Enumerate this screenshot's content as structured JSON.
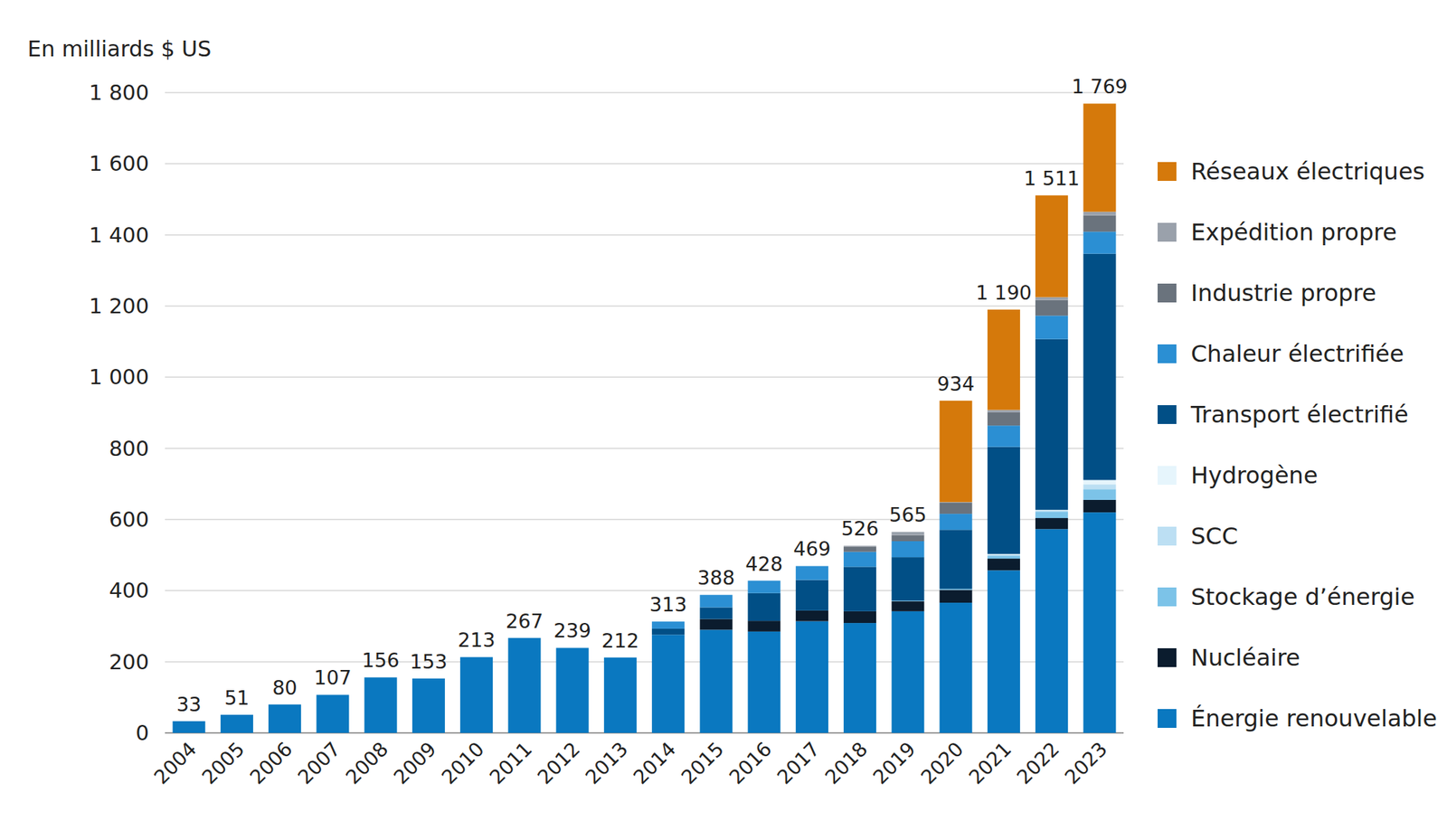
{
  "chart_data": {
    "type": "bar",
    "stacked": true,
    "y_label": "En milliards $ US",
    "categories": [
      "2004",
      "2005",
      "2006",
      "2007",
      "2008",
      "2009",
      "2010",
      "2011",
      "2012",
      "2013",
      "2014",
      "2015",
      "2016",
      "2017",
      "2018",
      "2019",
      "2020",
      "2021",
      "2022",
      "2023"
    ],
    "ylim": [
      0,
      1800
    ],
    "yticks": [
      0,
      200,
      400,
      600,
      800,
      {
        "value": 1000,
        "label": "1 000"
      },
      {
        "value": 1200,
        "label": "1 200"
      },
      {
        "value": 1400,
        "label": "1 400"
      },
      {
        "value": 1600,
        "label": "1 600"
      },
      {
        "value": 1800,
        "label": "1 800"
      }
    ],
    "grid": true,
    "legend": "right",
    "series": [
      {
        "name": "Énergie renouvelable",
        "color": "#0a78c0",
        "values": [
          33,
          51,
          80,
          107,
          156,
          153,
          213,
          267,
          239,
          212,
          276,
          290,
          285,
          314,
          309,
          342,
          366,
          457,
          573,
          620
        ]
      },
      {
        "name": "Nucléaire",
        "color": "#0b1c2e",
        "values": [
          0,
          0,
          0,
          0,
          0,
          0,
          0,
          0,
          0,
          0,
          0,
          30,
          30,
          30,
          33,
          28,
          36,
          33,
          31,
          35
        ]
      },
      {
        "name": "Stockage d’énergie",
        "color": "#7cc3e8",
        "values": [
          0,
          0,
          0,
          0,
          0,
          0,
          0,
          0,
          0,
          0,
          0,
          0,
          0,
          0,
          0,
          2,
          3,
          8,
          18,
          30
        ]
      },
      {
        "name": "SCC",
        "color": "#bcdff3",
        "values": [
          0,
          0,
          0,
          0,
          0,
          0,
          0,
          0,
          0,
          0,
          0,
          0,
          0,
          0,
          0,
          0,
          0,
          3,
          3,
          14
        ]
      },
      {
        "name": "Hydrogène",
        "color": "#e6f5fc",
        "values": [
          0,
          0,
          0,
          0,
          0,
          0,
          0,
          0,
          0,
          0,
          0,
          0,
          0,
          0,
          0,
          0,
          0,
          2,
          2,
          12
        ]
      },
      {
        "name": "Transport électrifié",
        "color": "#014f86",
        "values": [
          0,
          0,
          0,
          0,
          0,
          0,
          0,
          0,
          0,
          0,
          17,
          33,
          78,
          86,
          125,
          122,
          166,
          301,
          480,
          636
        ]
      },
      {
        "name": "Chaleur électrifiée",
        "color": "#2b8fd3",
        "values": [
          0,
          0,
          0,
          0,
          0,
          0,
          0,
          0,
          0,
          0,
          20,
          35,
          35,
          39,
          42,
          45,
          45,
          60,
          66,
          62
        ]
      },
      {
        "name": "Industrie propre",
        "color": "#6a737d",
        "values": [
          0,
          0,
          0,
          0,
          0,
          0,
          0,
          0,
          0,
          0,
          0,
          0,
          0,
          0,
          15,
          17,
          31,
          38,
          44,
          46
        ]
      },
      {
        "name": "Expédition propre",
        "color": "#9aa1ab",
        "values": [
          0,
          0,
          0,
          0,
          0,
          0,
          0,
          0,
          0,
          0,
          0,
          0,
          0,
          0,
          2,
          9,
          2,
          6,
          8,
          10
        ]
      },
      {
        "name": "Réseaux électriques",
        "color": "#d5790b",
        "values": [
          0,
          0,
          0,
          0,
          0,
          0,
          0,
          0,
          0,
          0,
          0,
          0,
          0,
          0,
          0,
          0,
          285,
          282,
          286,
          304
        ]
      }
    ],
    "totals": {
      "values": [
        33,
        51,
        80,
        107,
        156,
        153,
        213,
        267,
        239,
        212,
        313,
        388,
        428,
        469,
        526,
        565,
        934,
        1190,
        1511,
        1769
      ],
      "value_labels": [
        "33",
        "51",
        "80",
        "107",
        "156",
        "153",
        "213",
        "267",
        "239",
        "212",
        "313",
        "388",
        "428",
        "469",
        "526",
        "565",
        "934",
        "1 190",
        "1 511",
        "1 769"
      ]
    },
    "data_labels": true
  }
}
